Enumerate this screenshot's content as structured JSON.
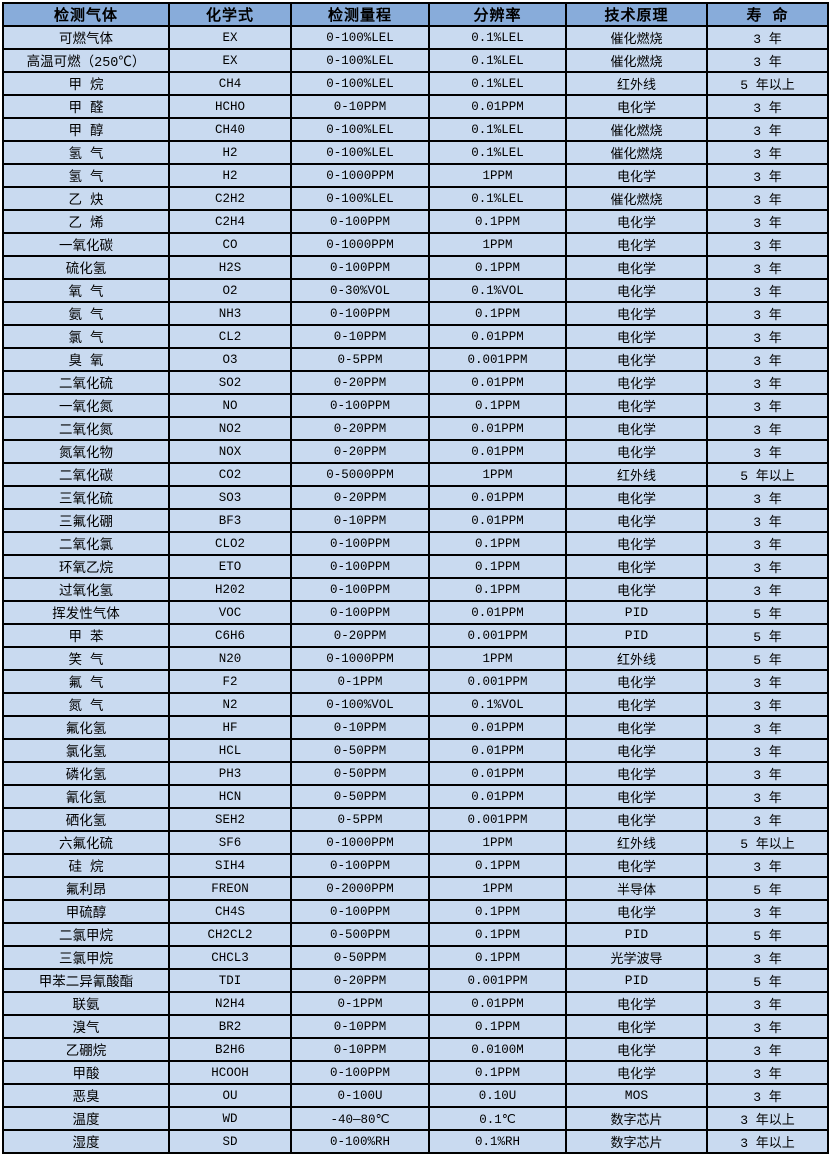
{
  "colors": {
    "header_bg": "#88ACDA",
    "row_bg": "#C9DAF0",
    "border": "#000000",
    "text": "#000000",
    "page_bg": "#FFFFFF"
  },
  "table": {
    "headers": [
      "检测气体",
      "化学式",
      "检测量程",
      "分辨率",
      "技术原理",
      "寿 命"
    ],
    "rows": [
      [
        "可燃气体",
        "EX",
        "0-100%LEL",
        "0.1%LEL",
        "催化燃烧",
        "3 年"
      ],
      [
        "高温可燃（250℃）",
        "EX",
        "0-100%LEL",
        "0.1%LEL",
        "催化燃烧",
        "3 年"
      ],
      [
        "甲 烷",
        "CH4",
        "0-100%LEL",
        "0.1%LEL",
        "红外线",
        "5 年以上"
      ],
      [
        "甲 醛",
        "HCHO",
        "0-10PPM",
        "0.01PPM",
        "电化学",
        "3 年"
      ],
      [
        "甲 醇",
        "CH40",
        "0-100%LEL",
        "0.1%LEL",
        "催化燃烧",
        "3 年"
      ],
      [
        "氢 气",
        "H2",
        "0-100%LEL",
        "0.1%LEL",
        "催化燃烧",
        "3 年"
      ],
      [
        "氢 气",
        "H2",
        "0-1000PPM",
        "1PPM",
        "电化学",
        "3 年"
      ],
      [
        "乙 炔",
        "C2H2",
        "0-100%LEL",
        "0.1%LEL",
        "催化燃烧",
        "3 年"
      ],
      [
        "乙 烯",
        "C2H4",
        "0-100PPM",
        "0.1PPM",
        "电化学",
        "3 年"
      ],
      [
        "一氧化碳",
        "CO",
        "0-1000PPM",
        "1PPM",
        "电化学",
        "3 年"
      ],
      [
        "硫化氢",
        "H2S",
        "0-100PPM",
        "0.1PPM",
        "电化学",
        "3 年"
      ],
      [
        "氧 气",
        "O2",
        "0-30%VOL",
        "0.1%VOL",
        "电化学",
        "3 年"
      ],
      [
        "氨 气",
        "NH3",
        "0-100PPM",
        "0.1PPM",
        "电化学",
        "3 年"
      ],
      [
        "氯 气",
        "CL2",
        "0-10PPM",
        "0.01PPM",
        "电化学",
        "3 年"
      ],
      [
        "臭 氧",
        "O3",
        "0-5PPM",
        "0.001PPM",
        "电化学",
        "3 年"
      ],
      [
        "二氧化硫",
        "SO2",
        "0-20PPM",
        "0.01PPM",
        "电化学",
        "3 年"
      ],
      [
        "一氧化氮",
        "NO",
        "0-100PPM",
        "0.1PPM",
        "电化学",
        "3 年"
      ],
      [
        "二氧化氮",
        "NO2",
        "0-20PPM",
        "0.01PPM",
        "电化学",
        "3 年"
      ],
      [
        "氮氧化物",
        "NOX",
        "0-20PPM",
        "0.01PPM",
        "电化学",
        "3 年"
      ],
      [
        "二氧化碳",
        "CO2",
        "0-5000PPM",
        "1PPM",
        "红外线",
        "5 年以上"
      ],
      [
        "三氧化硫",
        "SO3",
        "0-20PPM",
        "0.01PPM",
        "电化学",
        "3 年"
      ],
      [
        "三氟化硼",
        "BF3",
        "0-10PPM",
        "0.01PPM",
        "电化学",
        "3 年"
      ],
      [
        "二氧化氯",
        "CLO2",
        "0-100PPM",
        "0.1PPM",
        "电化学",
        "3 年"
      ],
      [
        "环氧乙烷",
        "ETO",
        "0-100PPM",
        "0.1PPM",
        "电化学",
        "3 年"
      ],
      [
        "过氧化氢",
        "H202",
        "0-100PPM",
        "0.1PPM",
        "电化学",
        "3 年"
      ],
      [
        "挥发性气体",
        "VOC",
        "0-100PPM",
        "0.01PPM",
        "PID",
        "5 年"
      ],
      [
        "甲 苯",
        "C6H6",
        "0-20PPM",
        "0.001PPM",
        "PID",
        "5 年"
      ],
      [
        "笑 气",
        "N20",
        "0-1000PPM",
        "1PPM",
        "红外线",
        "5 年"
      ],
      [
        "氟 气",
        "F2",
        "0-1PPM",
        "0.001PPM",
        "电化学",
        "3 年"
      ],
      [
        "氮 气",
        "N2",
        "0-100%VOL",
        "0.1%VOL",
        "电化学",
        "3 年"
      ],
      [
        "氟化氢",
        "HF",
        "0-10PPM",
        "0.01PPM",
        "电化学",
        "3 年"
      ],
      [
        "氯化氢",
        "HCL",
        "0-50PPM",
        "0.01PPM",
        "电化学",
        "3 年"
      ],
      [
        "磷化氢",
        "PH3",
        "0-50PPM",
        "0.01PPM",
        "电化学",
        "3 年"
      ],
      [
        "氰化氢",
        "HCN",
        "0-50PPM",
        "0.01PPM",
        "电化学",
        "3 年"
      ],
      [
        "硒化氢",
        "SEH2",
        "0-5PPM",
        "0.001PPM",
        "电化学",
        "3 年"
      ],
      [
        "六氟化硫",
        "SF6",
        "0-1000PPM",
        "1PPM",
        "红外线",
        "5 年以上"
      ],
      [
        "硅 烷",
        "SIH4",
        "0-100PPM",
        "0.1PPM",
        "电化学",
        "3 年"
      ],
      [
        "氟利昂",
        "FREON",
        "0-2000PPM",
        "1PPM",
        "半导体",
        "5 年"
      ],
      [
        "甲硫醇",
        "CH4S",
        "0-100PPM",
        "0.1PPM",
        "电化学",
        "3 年"
      ],
      [
        "二氯甲烷",
        "CH2CL2",
        "0-500PPM",
        "0.1PPM",
        "PID",
        "5 年"
      ],
      [
        "三氯甲烷",
        "CHCL3",
        "0-50PPM",
        "0.1PPM",
        "光学波导",
        "3 年"
      ],
      [
        "甲苯二异氰酸酯",
        "TDI",
        "0-20PPM",
        "0.001PPM",
        "PID",
        "5 年"
      ],
      [
        "联氨",
        "N2H4",
        "0-1PPM",
        "0.01PPM",
        "电化学",
        "3 年"
      ],
      [
        "溴气",
        "BR2",
        "0-10PPM",
        "0.1PPM",
        "电化学",
        "3 年"
      ],
      [
        "乙硼烷",
        "B2H6",
        "0-10PPM",
        "0.0100M",
        "电化学",
        "3 年"
      ],
      [
        "甲酸",
        "HCOOH",
        "0-100PPM",
        "0.1PPM",
        "电化学",
        "3 年"
      ],
      [
        "恶臭",
        "OU",
        "0-100U",
        "0.10U",
        "MOS",
        "3 年"
      ],
      [
        "温度",
        "WD",
        "-40—80℃",
        "0.1℃",
        "数字芯片",
        "3 年以上"
      ],
      [
        "湿度",
        "SD",
        "0-100%RH",
        "0.1%RH",
        "数字芯片",
        "3 年以上"
      ]
    ]
  }
}
